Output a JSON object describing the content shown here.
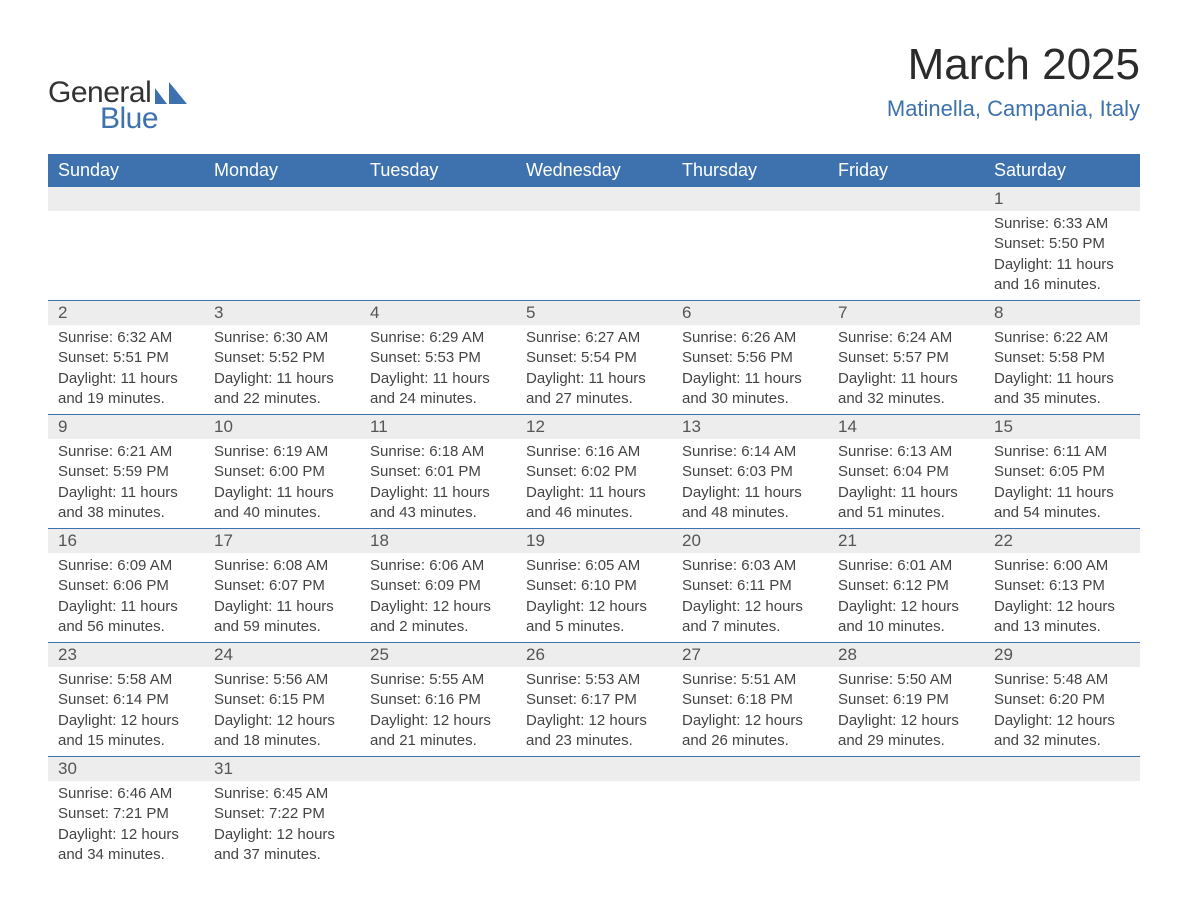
{
  "logo": {
    "general": "General",
    "blue": "Blue",
    "shape_color": "#3d72ae"
  },
  "title": "March 2025",
  "location": "Matinella, Campania, Italy",
  "colors": {
    "header_bg": "#3d72ae",
    "header_text": "#ffffff",
    "daynum_bg": "#ededed",
    "separator": "#3d72ae",
    "body_text": "#444444",
    "location_text": "#3d72ae",
    "page_bg": "#ffffff"
  },
  "typography": {
    "title_fontsize": 44,
    "location_fontsize": 22,
    "header_fontsize": 18,
    "daynum_fontsize": 17,
    "detail_fontsize": 15,
    "font_family": "Arial"
  },
  "day_headers": [
    "Sunday",
    "Monday",
    "Tuesday",
    "Wednesday",
    "Thursday",
    "Friday",
    "Saturday"
  ],
  "weeks": [
    [
      null,
      null,
      null,
      null,
      null,
      null,
      {
        "n": "1",
        "sunrise": "6:33 AM",
        "sunset": "5:50 PM",
        "daylight": "11 hours and 16 minutes."
      }
    ],
    [
      {
        "n": "2",
        "sunrise": "6:32 AM",
        "sunset": "5:51 PM",
        "daylight": "11 hours and 19 minutes."
      },
      {
        "n": "3",
        "sunrise": "6:30 AM",
        "sunset": "5:52 PM",
        "daylight": "11 hours and 22 minutes."
      },
      {
        "n": "4",
        "sunrise": "6:29 AM",
        "sunset": "5:53 PM",
        "daylight": "11 hours and 24 minutes."
      },
      {
        "n": "5",
        "sunrise": "6:27 AM",
        "sunset": "5:54 PM",
        "daylight": "11 hours and 27 minutes."
      },
      {
        "n": "6",
        "sunrise": "6:26 AM",
        "sunset": "5:56 PM",
        "daylight": "11 hours and 30 minutes."
      },
      {
        "n": "7",
        "sunrise": "6:24 AM",
        "sunset": "5:57 PM",
        "daylight": "11 hours and 32 minutes."
      },
      {
        "n": "8",
        "sunrise": "6:22 AM",
        "sunset": "5:58 PM",
        "daylight": "11 hours and 35 minutes."
      }
    ],
    [
      {
        "n": "9",
        "sunrise": "6:21 AM",
        "sunset": "5:59 PM",
        "daylight": "11 hours and 38 minutes."
      },
      {
        "n": "10",
        "sunrise": "6:19 AM",
        "sunset": "6:00 PM",
        "daylight": "11 hours and 40 minutes."
      },
      {
        "n": "11",
        "sunrise": "6:18 AM",
        "sunset": "6:01 PM",
        "daylight": "11 hours and 43 minutes."
      },
      {
        "n": "12",
        "sunrise": "6:16 AM",
        "sunset": "6:02 PM",
        "daylight": "11 hours and 46 minutes."
      },
      {
        "n": "13",
        "sunrise": "6:14 AM",
        "sunset": "6:03 PM",
        "daylight": "11 hours and 48 minutes."
      },
      {
        "n": "14",
        "sunrise": "6:13 AM",
        "sunset": "6:04 PM",
        "daylight": "11 hours and 51 minutes."
      },
      {
        "n": "15",
        "sunrise": "6:11 AM",
        "sunset": "6:05 PM",
        "daylight": "11 hours and 54 minutes."
      }
    ],
    [
      {
        "n": "16",
        "sunrise": "6:09 AM",
        "sunset": "6:06 PM",
        "daylight": "11 hours and 56 minutes."
      },
      {
        "n": "17",
        "sunrise": "6:08 AM",
        "sunset": "6:07 PM",
        "daylight": "11 hours and 59 minutes."
      },
      {
        "n": "18",
        "sunrise": "6:06 AM",
        "sunset": "6:09 PM",
        "daylight": "12 hours and 2 minutes."
      },
      {
        "n": "19",
        "sunrise": "6:05 AM",
        "sunset": "6:10 PM",
        "daylight": "12 hours and 5 minutes."
      },
      {
        "n": "20",
        "sunrise": "6:03 AM",
        "sunset": "6:11 PM",
        "daylight": "12 hours and 7 minutes."
      },
      {
        "n": "21",
        "sunrise": "6:01 AM",
        "sunset": "6:12 PM",
        "daylight": "12 hours and 10 minutes."
      },
      {
        "n": "22",
        "sunrise": "6:00 AM",
        "sunset": "6:13 PM",
        "daylight": "12 hours and 13 minutes."
      }
    ],
    [
      {
        "n": "23",
        "sunrise": "5:58 AM",
        "sunset": "6:14 PM",
        "daylight": "12 hours and 15 minutes."
      },
      {
        "n": "24",
        "sunrise": "5:56 AM",
        "sunset": "6:15 PM",
        "daylight": "12 hours and 18 minutes."
      },
      {
        "n": "25",
        "sunrise": "5:55 AM",
        "sunset": "6:16 PM",
        "daylight": "12 hours and 21 minutes."
      },
      {
        "n": "26",
        "sunrise": "5:53 AM",
        "sunset": "6:17 PM",
        "daylight": "12 hours and 23 minutes."
      },
      {
        "n": "27",
        "sunrise": "5:51 AM",
        "sunset": "6:18 PM",
        "daylight": "12 hours and 26 minutes."
      },
      {
        "n": "28",
        "sunrise": "5:50 AM",
        "sunset": "6:19 PM",
        "daylight": "12 hours and 29 minutes."
      },
      {
        "n": "29",
        "sunrise": "5:48 AM",
        "sunset": "6:20 PM",
        "daylight": "12 hours and 32 minutes."
      }
    ],
    [
      {
        "n": "30",
        "sunrise": "6:46 AM",
        "sunset": "7:21 PM",
        "daylight": "12 hours and 34 minutes."
      },
      {
        "n": "31",
        "sunrise": "6:45 AM",
        "sunset": "7:22 PM",
        "daylight": "12 hours and 37 minutes."
      },
      null,
      null,
      null,
      null,
      null
    ]
  ],
  "labels": {
    "sunrise": "Sunrise:",
    "sunset": "Sunset:",
    "daylight": "Daylight:"
  }
}
